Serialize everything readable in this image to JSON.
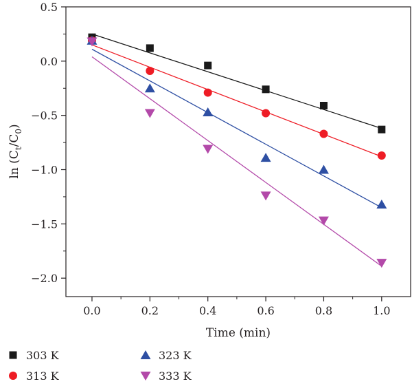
{
  "chart_data": {
    "type": "scatter",
    "title": "",
    "xlabel": "Time (min)",
    "ylabel": {
      "main": "ln (C",
      "sub1": "t",
      "mid": "/C",
      "sub2": "0",
      "end": ")"
    },
    "xlim": [
      -0.09,
      1.1
    ],
    "ylim": [
      -2.17,
      0.5
    ],
    "x_ticks": [
      0.0,
      0.2,
      0.4,
      0.6,
      0.8,
      1.0
    ],
    "x_tick_labels": [
      "0.0",
      "0.2",
      "0.4",
      "0.6",
      "0.8",
      "1.0"
    ],
    "y_ticks": [
      0.5,
      0.0,
      -0.5,
      -1.0,
      -1.5,
      -2.0
    ],
    "y_tick_labels": [
      "0.5",
      "0.0",
      "−0.5",
      "−1.0",
      "−1.5",
      "−2.0"
    ],
    "grid": false,
    "legend_position": "bottom",
    "series": [
      {
        "name": "303 K",
        "marker": "square",
        "color": "#1a1a1a",
        "x": [
          0.0,
          0.2,
          0.4,
          0.6,
          0.8,
          1.0
        ],
        "y": [
          0.22,
          0.12,
          -0.04,
          -0.26,
          -0.41,
          -0.63
        ],
        "fit": {
          "intercept": 0.25,
          "slope": -0.87
        }
      },
      {
        "name": "313 K",
        "marker": "circle",
        "color": "#ee1c25",
        "x": [
          0.0,
          0.2,
          0.4,
          0.6,
          0.8,
          1.0
        ],
        "y": [
          0.19,
          -0.09,
          -0.29,
          -0.48,
          -0.67,
          -0.87
        ],
        "fit": {
          "intercept": 0.15,
          "slope": -1.03
        }
      },
      {
        "name": "323 K",
        "marker": "triangle-up",
        "color": "#2e4fa3",
        "x": [
          0.0,
          0.2,
          0.4,
          0.6,
          0.8,
          1.0
        ],
        "y": [
          0.19,
          -0.25,
          -0.47,
          -0.89,
          -1.0,
          -1.32
        ],
        "fit": {
          "intercept": 0.11,
          "slope": -1.46
        }
      },
      {
        "name": "333 K",
        "marker": "triangle-down",
        "color": "#b349a9",
        "x": [
          0.0,
          0.2,
          0.4,
          0.6,
          0.8,
          1.0
        ],
        "y": [
          0.18,
          -0.48,
          -0.81,
          -1.24,
          -1.47,
          -1.86
        ],
        "fit": {
          "intercept": 0.04,
          "slope": -1.93
        }
      }
    ]
  }
}
